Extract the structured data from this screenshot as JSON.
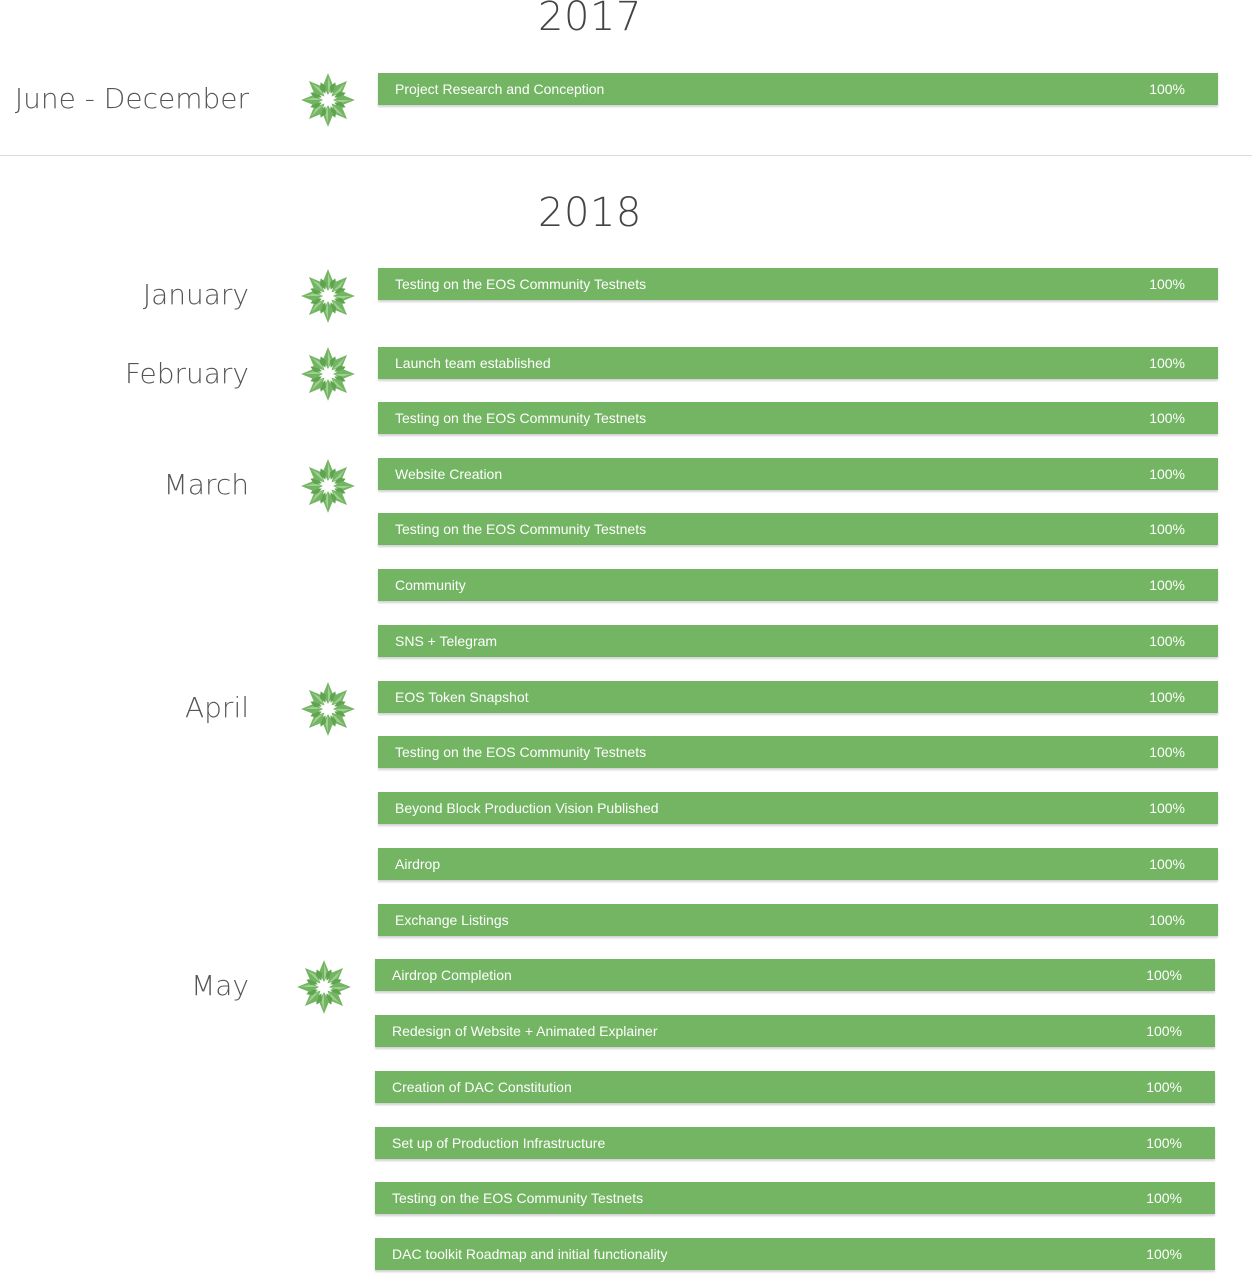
{
  "years": [
    {
      "title": "2017",
      "periods": [
        {
          "label": "June - December",
          "tasks": [
            {
              "name": "Project Research and Conception",
              "progress": "100%"
            }
          ]
        }
      ]
    },
    {
      "title": "2018",
      "periods": [
        {
          "label": "January",
          "tasks": [
            {
              "name": "Testing on the EOS Community Testnets",
              "progress": "100%"
            }
          ]
        },
        {
          "label": "February",
          "tasks": [
            {
              "name": "Launch team established",
              "progress": "100%"
            },
            {
              "name": "Testing on the EOS Community Testnets",
              "progress": "100%"
            }
          ]
        },
        {
          "label": "March",
          "tasks": [
            {
              "name": "Website Creation",
              "progress": "100%"
            },
            {
              "name": "Testing on the EOS Community Testnets",
              "progress": "100%"
            },
            {
              "name": "Community",
              "progress": "100%"
            },
            {
              "name": "SNS + Telegram",
              "progress": "100%"
            }
          ]
        },
        {
          "label": "April",
          "tasks": [
            {
              "name": "EOS Token Snapshot",
              "progress": "100%"
            },
            {
              "name": "Testing on the EOS Community Testnets",
              "progress": "100%"
            },
            {
              "name": "Beyond Block Production Vision Published",
              "progress": "100%"
            },
            {
              "name": "Airdrop",
              "progress": "100%"
            },
            {
              "name": "Exchange Listings",
              "progress": "100%"
            }
          ]
        },
        {
          "label": "May",
          "tasks": [
            {
              "name": "Airdrop Completion",
              "progress": "100%"
            },
            {
              "name": "Redesign of Website + Animated Explainer",
              "progress": "100%"
            },
            {
              "name": "Creation of DAC Constitution",
              "progress": "100%"
            },
            {
              "name": "Set up of Production Infrastructure",
              "progress": "100%"
            },
            {
              "name": "Testing on the EOS Community Testnets",
              "progress": "100%"
            },
            {
              "name": "DAC toolkit Roadmap and initial functionality",
              "progress": "100%"
            }
          ]
        }
      ]
    }
  ],
  "icon": {
    "name": "green-star-flower-icon",
    "color": "#73b563"
  }
}
